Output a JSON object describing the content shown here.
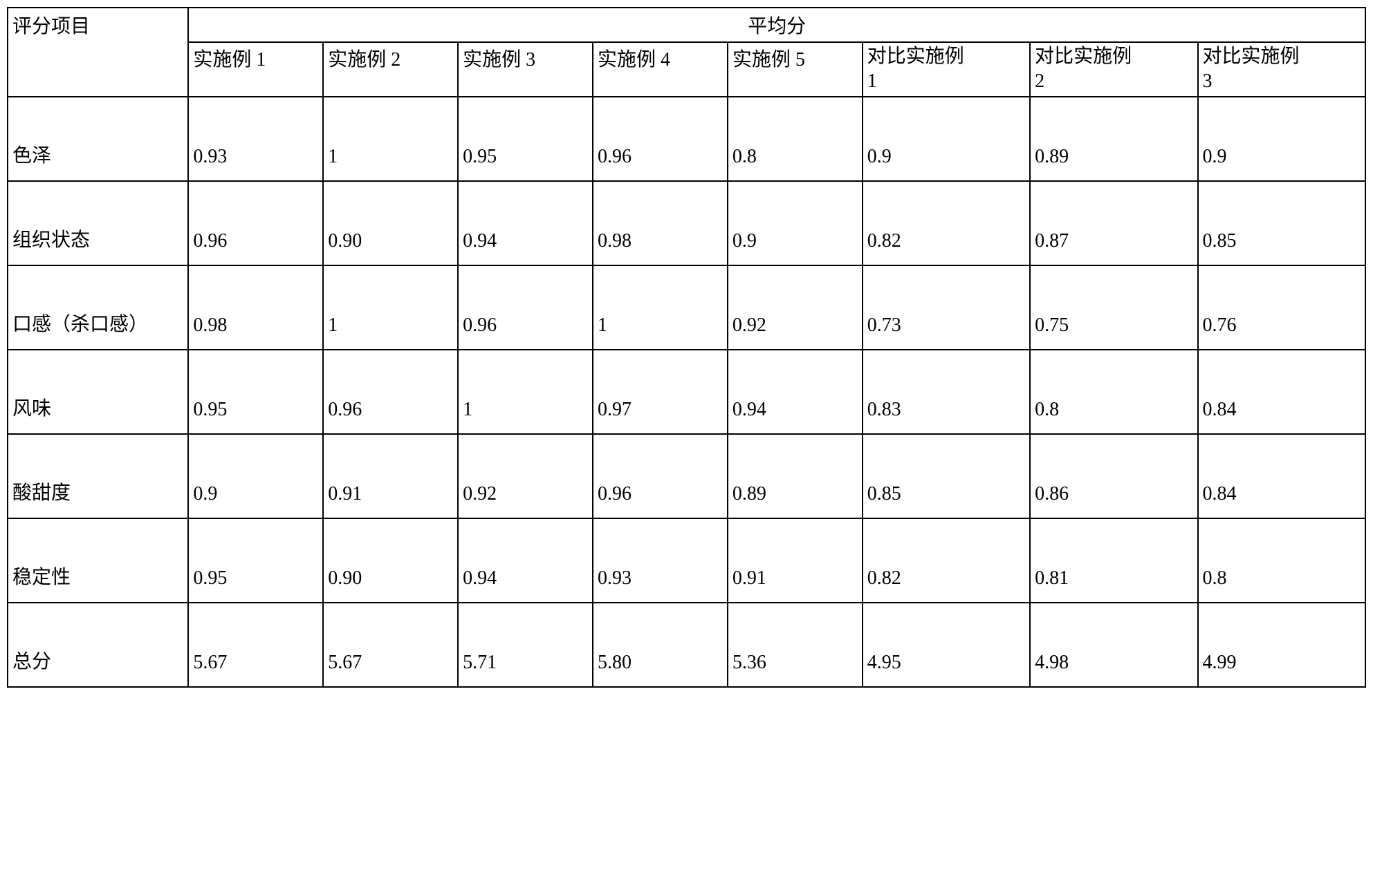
{
  "table": {
    "type": "table",
    "background_color": "#ffffff",
    "border_color": "#000000",
    "border_width": 2,
    "font_family": "SimSun",
    "label_fontsize": 28,
    "cell_fontsize": 28,
    "row_header_label": "评分项目",
    "group_header_label": "平均分",
    "columns": [
      "实施例 1",
      "实施例 2",
      "实施例 3",
      "实施例 4",
      "实施例 5",
      "对比实施例1",
      "对比实施例2",
      "对比实施例3"
    ],
    "rows": [
      {
        "label": "色泽",
        "values": [
          "0.93",
          "1",
          "0.95",
          "0.96",
          "0.8",
          "0.9",
          "0.89",
          "0.9"
        ]
      },
      {
        "label": "组织状态",
        "values": [
          "0.96",
          "0.90",
          "0.94",
          "0.98",
          "0.9",
          "0.82",
          "0.87",
          "0.85"
        ]
      },
      {
        "label": "口感（杀口感）",
        "values": [
          "0.98",
          "1",
          "0.96",
          "1",
          "0.92",
          "0.73",
          "0.75",
          "0.76"
        ]
      },
      {
        "label": "风味",
        "values": [
          "0.95",
          "0.96",
          "1",
          "0.97",
          "0.94",
          "0.83",
          "0.8",
          "0.84"
        ]
      },
      {
        "label": "酸甜度",
        "values": [
          "0.9",
          "0.91",
          "0.92",
          "0.96",
          "0.89",
          "0.85",
          "0.86",
          "0.84"
        ]
      },
      {
        "label": "稳定性",
        "values": [
          "0.95",
          "0.90",
          "0.94",
          "0.93",
          "0.91",
          "0.82",
          "0.81",
          "0.8"
        ]
      },
      {
        "label": "总分",
        "values": [
          "5.67",
          "5.67",
          "5.71",
          "5.80",
          "5.36",
          "4.95",
          "4.98",
          "4.99"
        ]
      }
    ]
  }
}
